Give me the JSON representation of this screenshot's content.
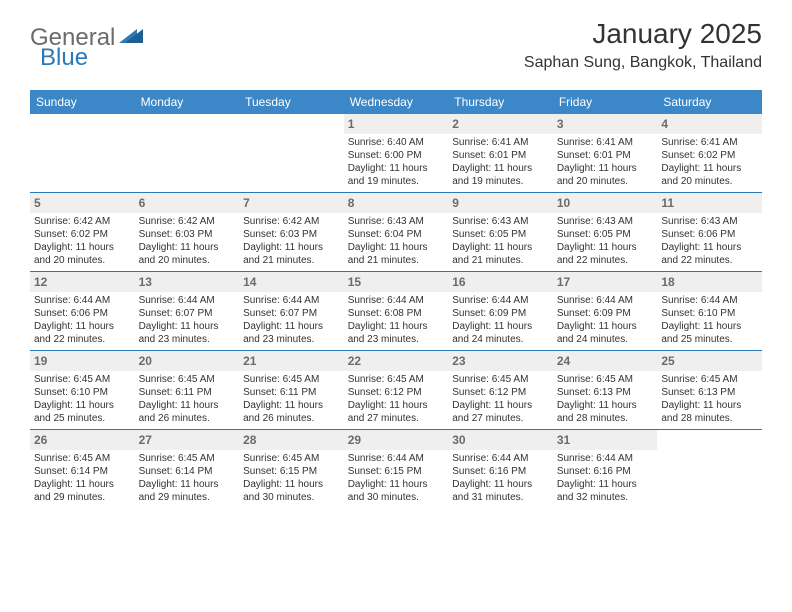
{
  "brand": {
    "part1": "General",
    "part2": "Blue"
  },
  "title": "January 2025",
  "location": "Saphan Sung, Bangkok, Thailand",
  "colors": {
    "header_bg": "#3b87c8",
    "row_border": "#2a7ab9",
    "daynum_bg": "#efefef",
    "daynum_text": "#6b6b6b",
    "text": "#333333",
    "background": "#ffffff"
  },
  "daynames": [
    "Sunday",
    "Monday",
    "Tuesday",
    "Wednesday",
    "Thursday",
    "Friday",
    "Saturday"
  ],
  "weeks": [
    [
      {
        "empty": true
      },
      {
        "empty": true
      },
      {
        "empty": true
      },
      {
        "day": "1",
        "sunrise": "6:40 AM",
        "sunset": "6:00 PM",
        "daylight": "11 hours and 19 minutes."
      },
      {
        "day": "2",
        "sunrise": "6:41 AM",
        "sunset": "6:01 PM",
        "daylight": "11 hours and 19 minutes."
      },
      {
        "day": "3",
        "sunrise": "6:41 AM",
        "sunset": "6:01 PM",
        "daylight": "11 hours and 20 minutes."
      },
      {
        "day": "4",
        "sunrise": "6:41 AM",
        "sunset": "6:02 PM",
        "daylight": "11 hours and 20 minutes."
      }
    ],
    [
      {
        "day": "5",
        "sunrise": "6:42 AM",
        "sunset": "6:02 PM",
        "daylight": "11 hours and 20 minutes."
      },
      {
        "day": "6",
        "sunrise": "6:42 AM",
        "sunset": "6:03 PM",
        "daylight": "11 hours and 20 minutes."
      },
      {
        "day": "7",
        "sunrise": "6:42 AM",
        "sunset": "6:03 PM",
        "daylight": "11 hours and 21 minutes."
      },
      {
        "day": "8",
        "sunrise": "6:43 AM",
        "sunset": "6:04 PM",
        "daylight": "11 hours and 21 minutes."
      },
      {
        "day": "9",
        "sunrise": "6:43 AM",
        "sunset": "6:05 PM",
        "daylight": "11 hours and 21 minutes."
      },
      {
        "day": "10",
        "sunrise": "6:43 AM",
        "sunset": "6:05 PM",
        "daylight": "11 hours and 22 minutes."
      },
      {
        "day": "11",
        "sunrise": "6:43 AM",
        "sunset": "6:06 PM",
        "daylight": "11 hours and 22 minutes."
      }
    ],
    [
      {
        "day": "12",
        "sunrise": "6:44 AM",
        "sunset": "6:06 PM",
        "daylight": "11 hours and 22 minutes."
      },
      {
        "day": "13",
        "sunrise": "6:44 AM",
        "sunset": "6:07 PM",
        "daylight": "11 hours and 23 minutes."
      },
      {
        "day": "14",
        "sunrise": "6:44 AM",
        "sunset": "6:07 PM",
        "daylight": "11 hours and 23 minutes."
      },
      {
        "day": "15",
        "sunrise": "6:44 AM",
        "sunset": "6:08 PM",
        "daylight": "11 hours and 23 minutes."
      },
      {
        "day": "16",
        "sunrise": "6:44 AM",
        "sunset": "6:09 PM",
        "daylight": "11 hours and 24 minutes."
      },
      {
        "day": "17",
        "sunrise": "6:44 AM",
        "sunset": "6:09 PM",
        "daylight": "11 hours and 24 minutes."
      },
      {
        "day": "18",
        "sunrise": "6:44 AM",
        "sunset": "6:10 PM",
        "daylight": "11 hours and 25 minutes."
      }
    ],
    [
      {
        "day": "19",
        "sunrise": "6:45 AM",
        "sunset": "6:10 PM",
        "daylight": "11 hours and 25 minutes."
      },
      {
        "day": "20",
        "sunrise": "6:45 AM",
        "sunset": "6:11 PM",
        "daylight": "11 hours and 26 minutes."
      },
      {
        "day": "21",
        "sunrise": "6:45 AM",
        "sunset": "6:11 PM",
        "daylight": "11 hours and 26 minutes."
      },
      {
        "day": "22",
        "sunrise": "6:45 AM",
        "sunset": "6:12 PM",
        "daylight": "11 hours and 27 minutes."
      },
      {
        "day": "23",
        "sunrise": "6:45 AM",
        "sunset": "6:12 PM",
        "daylight": "11 hours and 27 minutes."
      },
      {
        "day": "24",
        "sunrise": "6:45 AM",
        "sunset": "6:13 PM",
        "daylight": "11 hours and 28 minutes."
      },
      {
        "day": "25",
        "sunrise": "6:45 AM",
        "sunset": "6:13 PM",
        "daylight": "11 hours and 28 minutes."
      }
    ],
    [
      {
        "day": "26",
        "sunrise": "6:45 AM",
        "sunset": "6:14 PM",
        "daylight": "11 hours and 29 minutes."
      },
      {
        "day": "27",
        "sunrise": "6:45 AM",
        "sunset": "6:14 PM",
        "daylight": "11 hours and 29 minutes."
      },
      {
        "day": "28",
        "sunrise": "6:45 AM",
        "sunset": "6:15 PM",
        "daylight": "11 hours and 30 minutes."
      },
      {
        "day": "29",
        "sunrise": "6:44 AM",
        "sunset": "6:15 PM",
        "daylight": "11 hours and 30 minutes."
      },
      {
        "day": "30",
        "sunrise": "6:44 AM",
        "sunset": "6:16 PM",
        "daylight": "11 hours and 31 minutes."
      },
      {
        "day": "31",
        "sunrise": "6:44 AM",
        "sunset": "6:16 PM",
        "daylight": "11 hours and 32 minutes."
      },
      {
        "empty": true
      }
    ]
  ],
  "labels": {
    "sunrise": "Sunrise: ",
    "sunset": "Sunset: ",
    "daylight": "Daylight: "
  }
}
